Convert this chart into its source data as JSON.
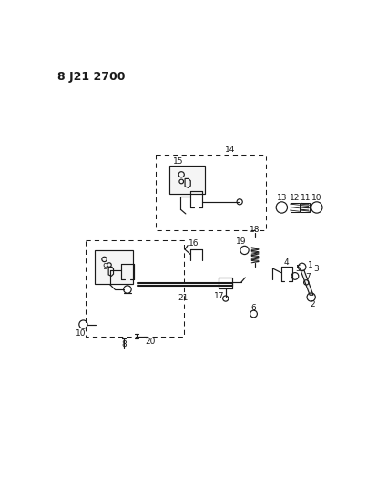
{
  "title": "8 J21 2700",
  "bg_color": "#ffffff",
  "fg_color": "#1a1a1a",
  "figsize": [
    4.03,
    5.33
  ],
  "dpi": 100,
  "lw": 0.85
}
